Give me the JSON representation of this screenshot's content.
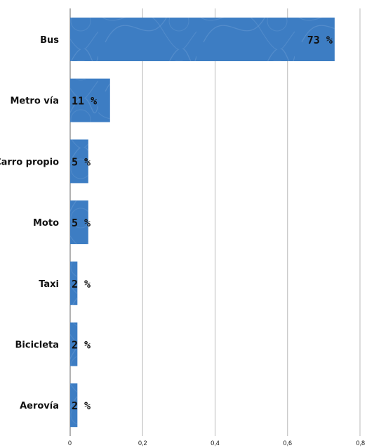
{
  "chart_data": {
    "type": "bar",
    "orientation": "horizontal",
    "categories": [
      "Bus",
      "Metro vía",
      "Carro propio",
      "Moto",
      "Taxi",
      "Bicicleta",
      "Aerovía"
    ],
    "values": [
      0.73,
      0.11,
      0.05,
      0.05,
      0.02,
      0.02,
      0.02
    ],
    "data_labels": [
      "73 %",
      "11 %",
      "5 %",
      "5 %",
      "2 %",
      "2 %",
      "2 %"
    ],
    "xlim": [
      0,
      0.8
    ],
    "x_ticks": [
      0,
      0.2,
      0.4,
      0.6,
      0.8
    ],
    "x_tick_labels": [
      "0",
      "0,2",
      "0,4",
      "0,6",
      "0,8"
    ],
    "grid": true,
    "legend": "none",
    "bar_color": "#3d7dc3",
    "pattern_color": "#6fa0d6"
  }
}
